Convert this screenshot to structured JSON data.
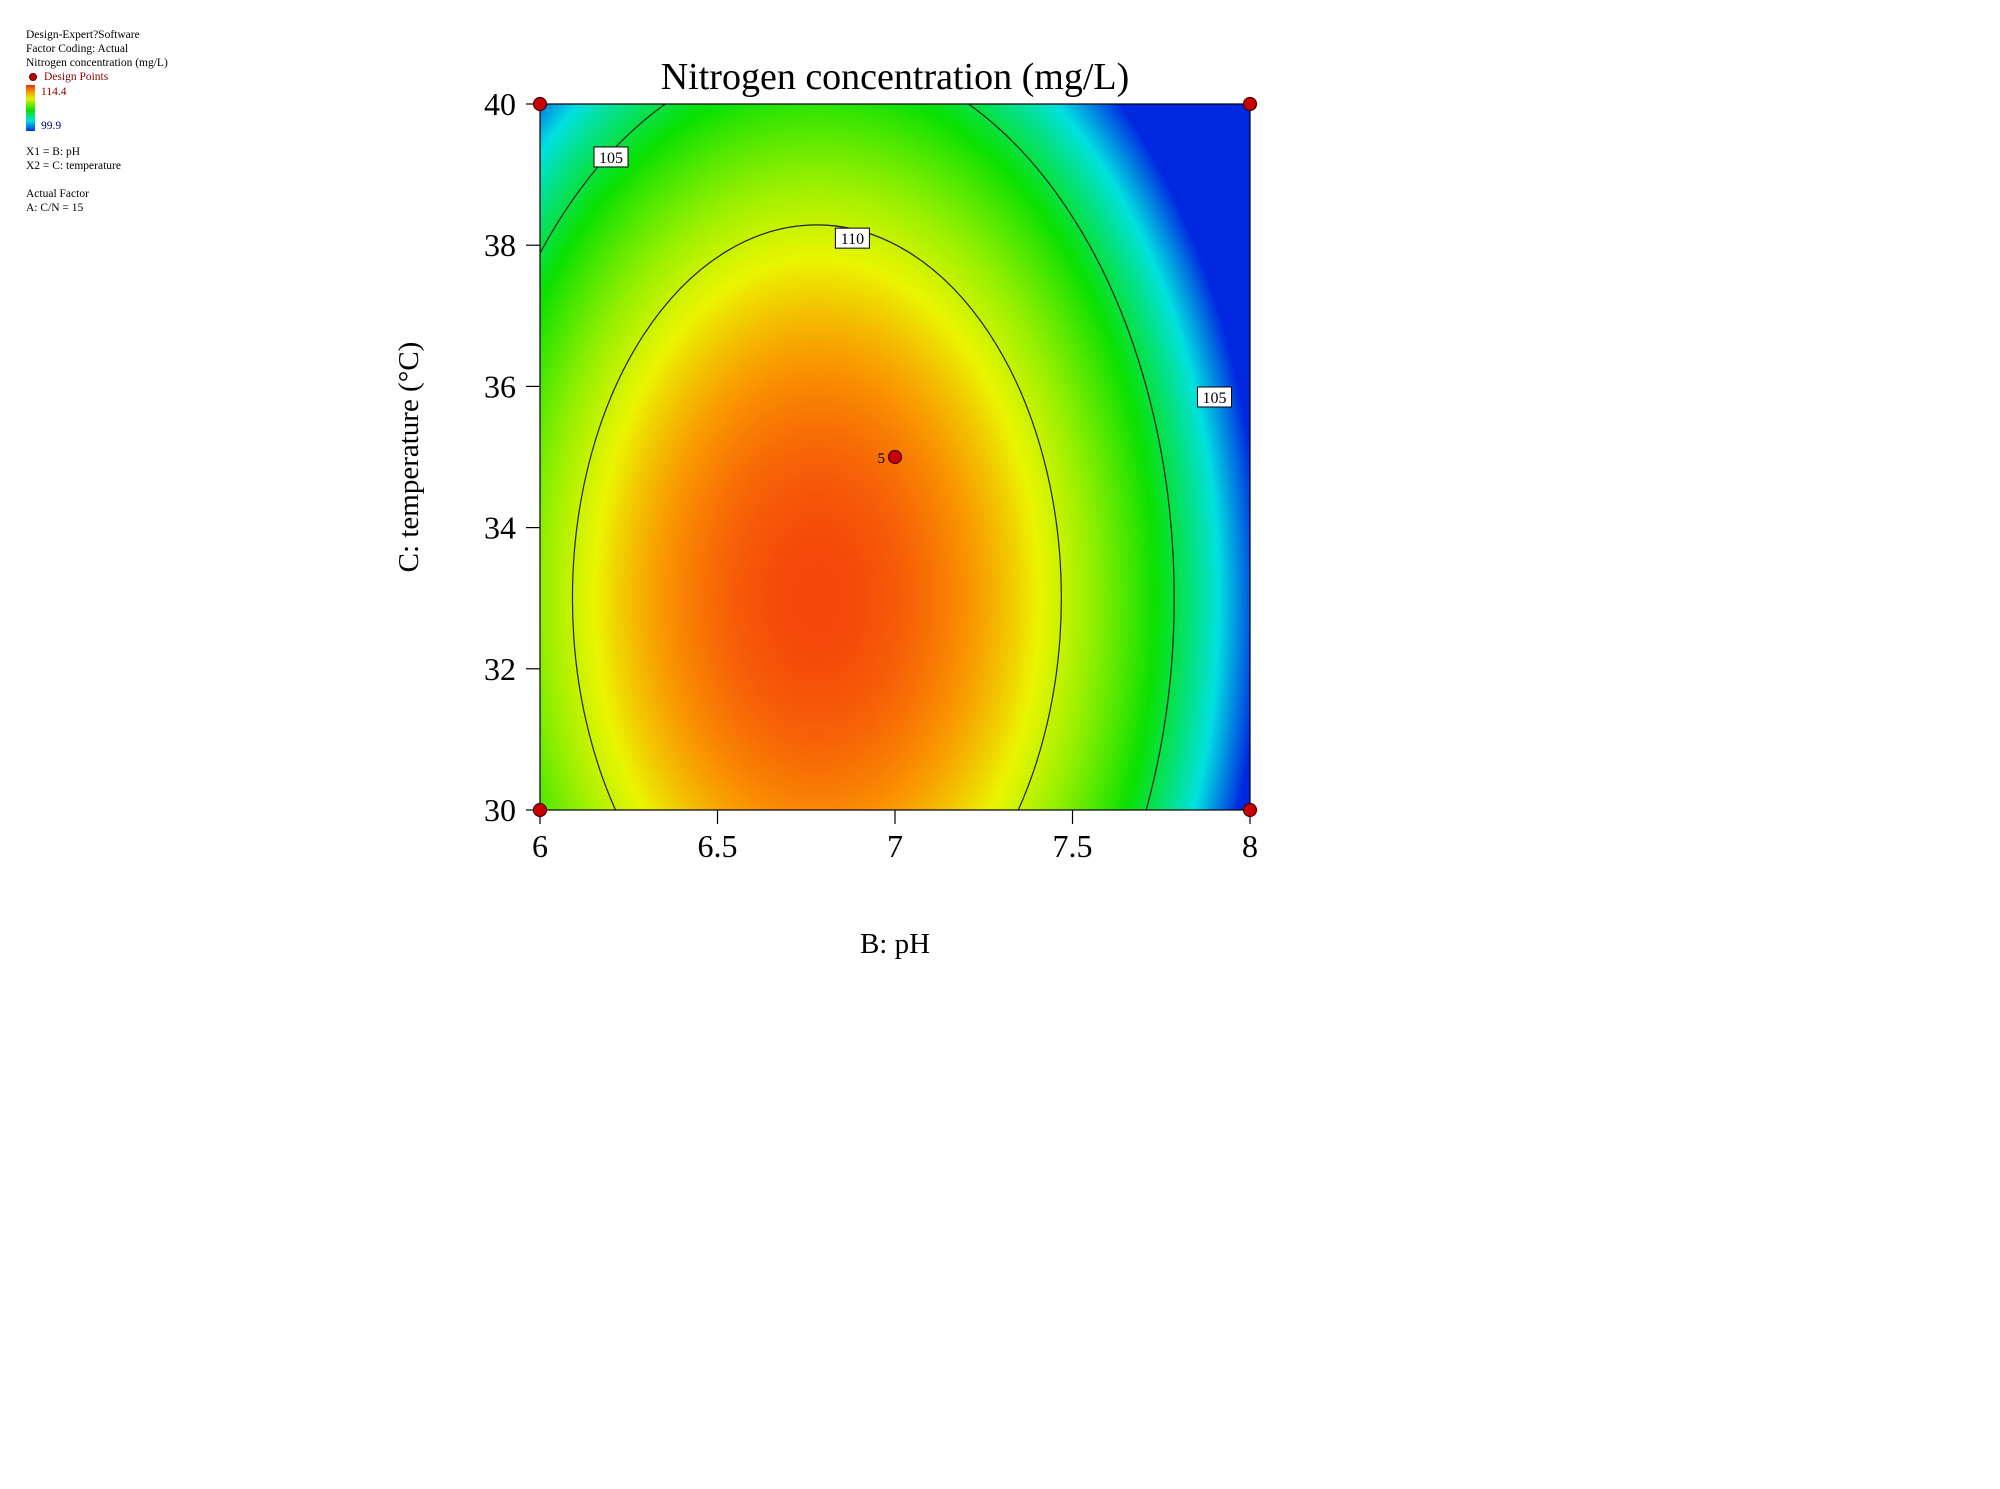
{
  "legend": {
    "software": "Design-Expert?Software",
    "factor_coding": "Factor Coding: Actual",
    "response": "Nitrogen concentration (mg/L)",
    "design_points": "Design Points",
    "scale_max": "114.4",
    "scale_min": "99.9",
    "x1": "X1 = B: pH",
    "x2": "X2 = C: temperature",
    "actual_factor_title": "Actual Factor",
    "actual_factor": "A: C/N = 15"
  },
  "chart_data": {
    "type": "heatmap",
    "title": "Nitrogen concentration (mg/L)",
    "xlabel": "B: pH",
    "ylabel": "C: temperature (°C)",
    "xlim": [
      6,
      8
    ],
    "ylim": [
      30,
      40
    ],
    "x_ticks": [
      "6",
      "6.5",
      "7",
      "7.5",
      "8"
    ],
    "y_ticks": [
      "30",
      "32",
      "34",
      "36",
      "38",
      "40"
    ],
    "color_range": [
      99.9,
      114.4
    ],
    "colors": {
      "high": "#e83010",
      "mid": "#10e000",
      "low": "#0030e0"
    },
    "design_points": [
      {
        "x": 6,
        "y": 30,
        "label": ""
      },
      {
        "x": 8,
        "y": 30,
        "label": ""
      },
      {
        "x": 6,
        "y": 40,
        "label": ""
      },
      {
        "x": 8,
        "y": 40,
        "label": ""
      },
      {
        "x": 7,
        "y": 35,
        "label": "5"
      }
    ],
    "contour_labels": [
      {
        "value": "105",
        "x": 6.2,
        "y": 39.25
      },
      {
        "value": "110",
        "x": 6.88,
        "y": 38.1
      },
      {
        "value": "105",
        "x": 7.9,
        "y": 35.85
      }
    ],
    "grid": false,
    "legend_placement": "top-left"
  }
}
